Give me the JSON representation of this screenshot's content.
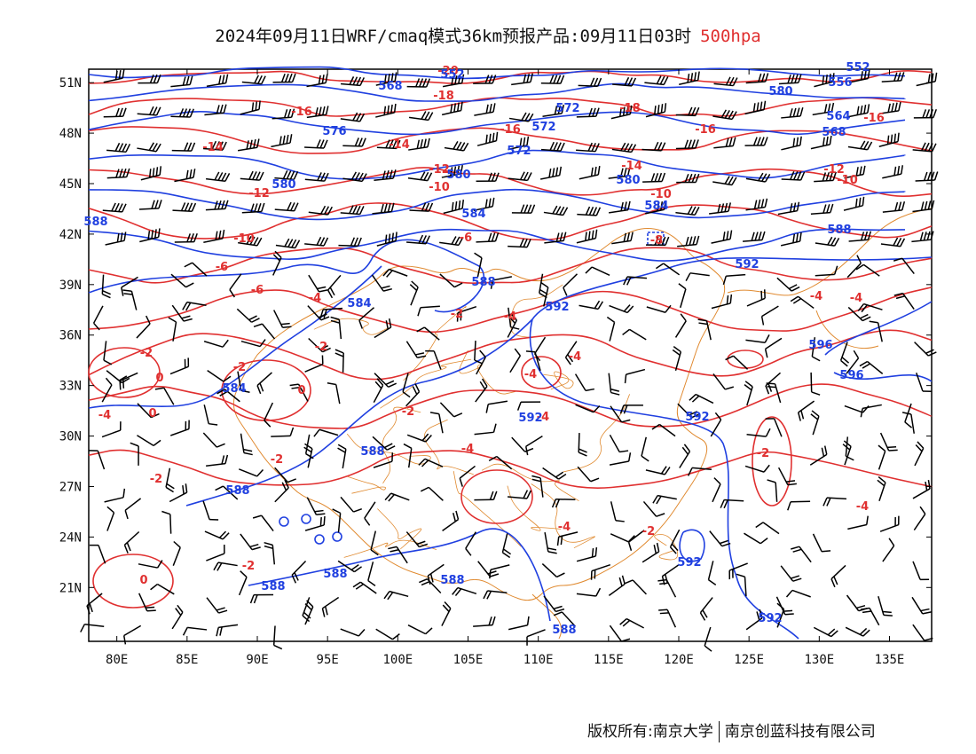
{
  "title": {
    "main": "2024年09月11日WRF/cmaq模式36km预报产品:09月11日03时",
    "level": "500hpa",
    "level_color": "#e03030"
  },
  "footer": {
    "copyright_left": "版权所有:南京大学",
    "copyright_right": "南京创蓝科技有限公司"
  },
  "map": {
    "lon_range": [
      78,
      138
    ],
    "lat_range": [
      17.8,
      51.8
    ],
    "lat_labels": [
      "51N",
      "48N",
      "45N",
      "42N",
      "39N",
      "36N",
      "33N",
      "30N",
      "27N",
      "24N",
      "21N"
    ],
    "lat_values": [
      51,
      48,
      45,
      42,
      39,
      36,
      33,
      30,
      27,
      24,
      21
    ],
    "lon_labels": [
      "80E",
      "85E",
      "90E",
      "95E",
      "100E",
      "105E",
      "110E",
      "115E",
      "120E",
      "125E",
      "130E",
      "135E"
    ],
    "lon_values": [
      80,
      85,
      90,
      95,
      100,
      105,
      110,
      115,
      120,
      125,
      130,
      135
    ],
    "colors": {
      "height_contour": "#2040e0",
      "temperature_contour": "#e03030",
      "boundary": "#e08a30",
      "wind_barb": "#000000"
    },
    "height_labels": [
      "588",
      "576",
      "580",
      "584",
      "592",
      "596",
      "556",
      "564",
      "568",
      "572",
      "552"
    ],
    "temperature_labels": [
      "-20",
      "-18",
      "-16",
      "-14",
      "-12",
      "-10",
      "-8",
      "-6",
      "-4",
      "-2",
      "0"
    ]
  }
}
